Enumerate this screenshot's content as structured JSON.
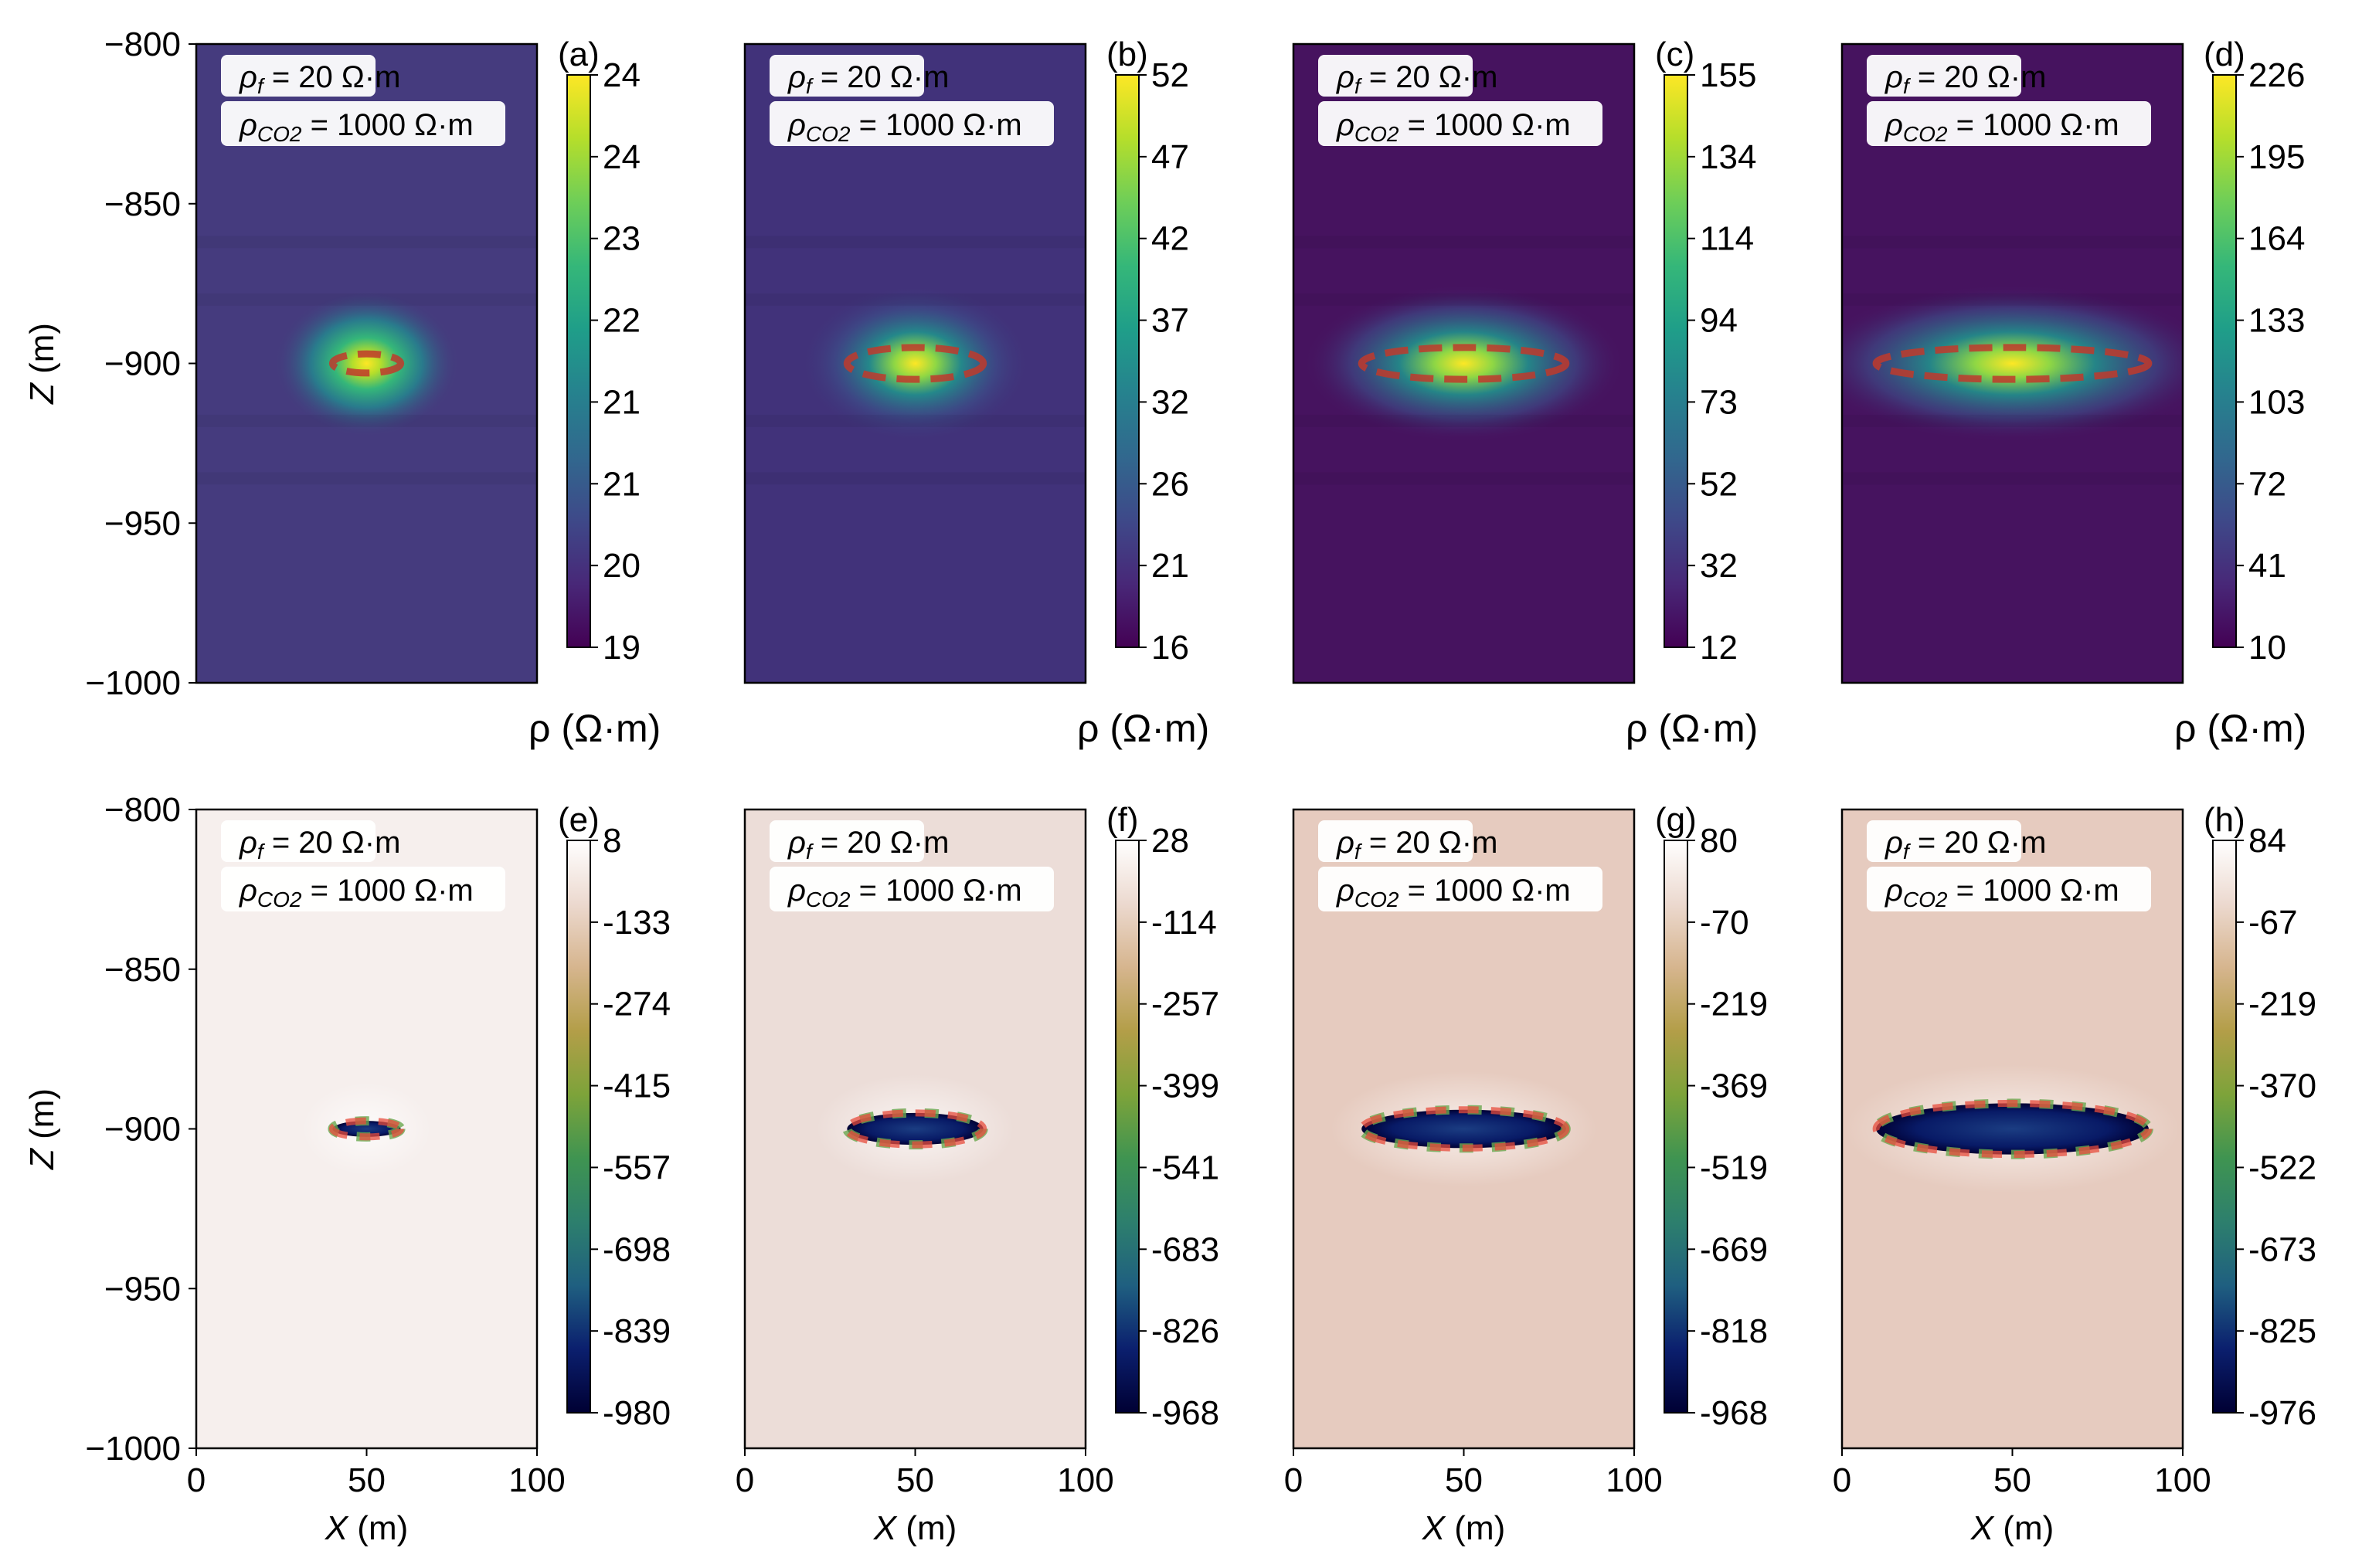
{
  "chart_data": {
    "type": "heatmap",
    "x_axis": {
      "label_var": "X",
      "label_unit": " (m)",
      "ticks": [
        0,
        50,
        100
      ],
      "range": [
        0,
        100
      ]
    },
    "z_axis": {
      "label_var": "Z",
      "label_unit": " (m)",
      "ticks": [
        -800,
        -850,
        -900,
        -950,
        -1000
      ],
      "range": [
        -1000,
        -800
      ]
    },
    "tick_labels": {
      "x": [
        "0",
        "50",
        "100"
      ],
      "z": [
        "−800",
        "−850",
        "−900",
        "−950",
        "−1000"
      ]
    },
    "legend": {
      "rho_f": "ρ",
      "rho_f_sub": "f",
      "rho_f_value": " = 20 Ω·m",
      "rho_co2": "ρ",
      "rho_co2_sub": "CO2",
      "rho_co2_value": " = 1000 Ω·m"
    },
    "colorbar_unit": "ρ (Ω·m)",
    "panels": [
      {
        "id": "a",
        "tag": "(a)",
        "kind": "resistivity",
        "colormap": "viridis",
        "colorbar_ticks": [
          "24",
          "24",
          "23",
          "22",
          "21",
          "21",
          "20",
          "19"
        ],
        "plume_center": [
          50,
          -900
        ],
        "plume_width": 20,
        "plume_height": 6
      },
      {
        "id": "b",
        "tag": "(b)",
        "kind": "resistivity",
        "colormap": "viridis",
        "colorbar_ticks": [
          "52",
          "47",
          "42",
          "37",
          "32",
          "26",
          "21",
          "16"
        ],
        "plume_center": [
          50,
          -900
        ],
        "plume_width": 40,
        "plume_height": 10
      },
      {
        "id": "c",
        "tag": "(c)",
        "kind": "resistivity",
        "colormap": "viridis",
        "colorbar_ticks": [
          "155",
          "134",
          "114",
          "94",
          "73",
          "52",
          "32",
          "12"
        ],
        "plume_center": [
          50,
          -900
        ],
        "plume_width": 60,
        "plume_height": 10
      },
      {
        "id": "d",
        "tag": "(d)",
        "kind": "resistivity",
        "colormap": "viridis",
        "colorbar_ticks": [
          "226",
          "195",
          "164",
          "133",
          "103",
          "72",
          "41",
          "10"
        ],
        "plume_center": [
          50,
          -900
        ],
        "plume_width": 80,
        "plume_height": 10
      },
      {
        "id": "e",
        "tag": "(e)",
        "kind": "difference",
        "colormap": "gist_earth_r",
        "colorbar_ticks": [
          "8",
          "-133",
          "-274",
          "-415",
          "-557",
          "-698",
          "-839",
          "-980"
        ],
        "plume_center": [
          50,
          -900
        ],
        "plume_width": 20,
        "plume_height": 5
      },
      {
        "id": "f",
        "tag": "(f)",
        "kind": "difference",
        "colormap": "gist_earth_r",
        "colorbar_ticks": [
          "28",
          "-114",
          "-257",
          "-399",
          "-541",
          "-683",
          "-826",
          "-968"
        ],
        "plume_center": [
          50,
          -900
        ],
        "plume_width": 40,
        "plume_height": 10
      },
      {
        "id": "g",
        "tag": "(g)",
        "kind": "difference",
        "colormap": "gist_earth_r",
        "colorbar_ticks": [
          "80",
          "-70",
          "-219",
          "-369",
          "-519",
          "-669",
          "-818",
          "-968"
        ],
        "plume_center": [
          50,
          -900
        ],
        "plume_width": 60,
        "plume_height": 12
      },
      {
        "id": "h",
        "tag": "(h)",
        "kind": "difference",
        "colormap": "gist_earth_r",
        "colorbar_ticks": [
          "84",
          "-67",
          "-219",
          "-370",
          "-522",
          "-673",
          "-825",
          "-976"
        ],
        "plume_center": [
          50,
          -900
        ],
        "plume_width": 80,
        "plume_height": 16
      }
    ],
    "colors": {
      "ellipse": "#c0392b",
      "viridis_bg": "#3d2c6f",
      "viridis": [
        "#440154",
        "#482878",
        "#3e4989",
        "#31688e",
        "#26828e",
        "#1f9e89",
        "#35b779",
        "#6ece58",
        "#b5de2b",
        "#fde725"
      ],
      "diff_bg_light": "#f6efed",
      "diff_bg_mid": "#ecddd8",
      "diff_bg_dark": "#e6cbbf",
      "diff": [
        "#000033",
        "#0b1f6e",
        "#1f5f80",
        "#2d7f6d",
        "#3f9451",
        "#7da33a",
        "#b39e48",
        "#d6b58e",
        "#ecd9cf",
        "#ffffff"
      ]
    }
  }
}
